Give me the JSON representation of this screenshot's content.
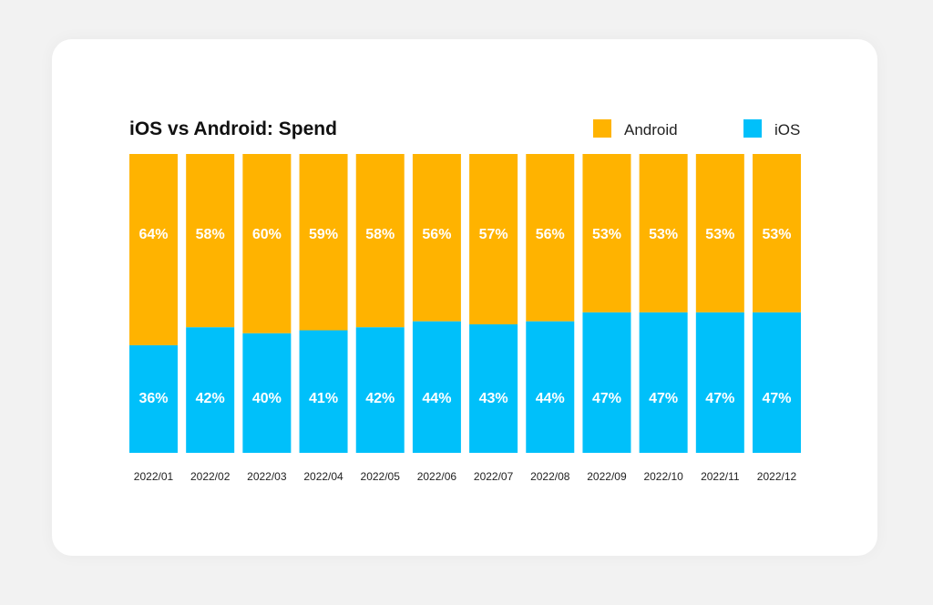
{
  "chart_data": {
    "type": "bar",
    "stacked": true,
    "normalized": true,
    "title": "iOS vs Android: Spend",
    "categories": [
      "2022/01",
      "2022/02",
      "2022/03",
      "2022/04",
      "2022/05",
      "2022/06",
      "2022/07",
      "2022/08",
      "2022/09",
      "2022/10",
      "2022/11",
      "2022/12"
    ],
    "series": [
      {
        "name": "Android",
        "color": "#FFB300",
        "values": [
          64,
          58,
          60,
          59,
          58,
          56,
          57,
          56,
          53,
          53,
          53,
          53
        ],
        "labels": [
          "64%",
          "58%",
          "60%",
          "59%",
          "58%",
          "56%",
          "57%",
          "56%",
          "53%",
          "53%",
          "53%",
          "53%"
        ]
      },
      {
        "name": "iOS",
        "color": "#00C0FA",
        "values": [
          36,
          42,
          40,
          41,
          42,
          44,
          43,
          44,
          47,
          47,
          47,
          47
        ],
        "labels": [
          "36%",
          "42%",
          "40%",
          "41%",
          "42%",
          "44%",
          "43%",
          "44%",
          "47%",
          "47%",
          "47%",
          "47%"
        ]
      }
    ],
    "ylim": [
      0,
      100
    ],
    "legend_position": "top-right",
    "grid": false
  }
}
